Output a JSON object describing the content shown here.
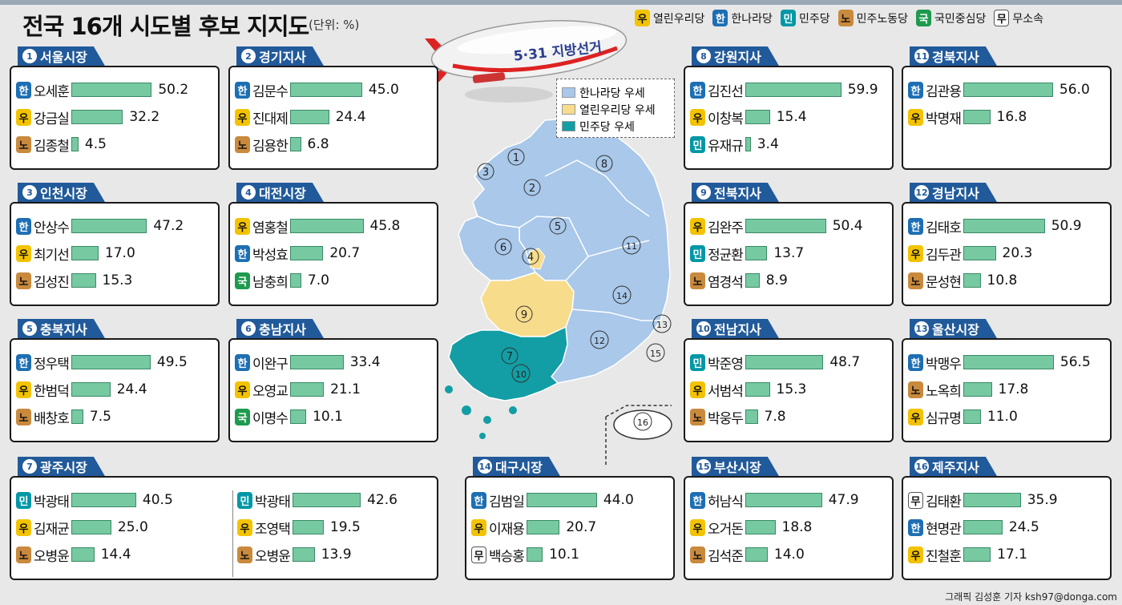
{
  "title": "전국 16개 시도별 후보 지지도",
  "unit": "(단위: %)",
  "credit": "그래픽 김성훈 기자 ksh97@donga.com",
  "blimp_text": "5·31 지방선거",
  "parties": {
    "u": {
      "abbr": "우",
      "name": "열린우리당",
      "color": "#f3c300"
    },
    "h": {
      "abbr": "한",
      "name": "한나라당",
      "color": "#1d6fb3"
    },
    "m": {
      "abbr": "민",
      "name": "민주당",
      "color": "#0097a7"
    },
    "n": {
      "abbr": "노",
      "name": "민주노동당",
      "color": "#c98a3d"
    },
    "g": {
      "abbr": "국",
      "name": "국민중심당",
      "color": "#1e9a4e"
    },
    "x": {
      "abbr": "무",
      "name": "무소속",
      "color": "#ffffff"
    }
  },
  "map_legend": [
    {
      "label": "한나라당 우세",
      "color": "#a9c8ea"
    },
    {
      "label": "열린우리당 우세",
      "color": "#f7dc8c"
    },
    {
      "label": "민주당 우세",
      "color": "#129ea4"
    }
  ],
  "map_numbers": [
    "1",
    "2",
    "3",
    "4",
    "5",
    "6",
    "7",
    "8",
    "9",
    "10",
    "11",
    "12",
    "13",
    "14",
    "15",
    "16"
  ],
  "chart_data": {
    "type": "bar",
    "orientation": "horizontal",
    "title": "전국 16개 시도별 후보 지지도",
    "unit": "%",
    "regions": [
      {
        "num": "1",
        "name": "서울시장",
        "candidates": [
          {
            "party": "h",
            "name": "오세훈",
            "value": 50.2
          },
          {
            "party": "u",
            "name": "강금실",
            "value": 32.2
          },
          {
            "party": "n",
            "name": "김종철",
            "value": 4.5
          }
        ]
      },
      {
        "num": "2",
        "name": "경기지사",
        "candidates": [
          {
            "party": "h",
            "name": "김문수",
            "value": 45.0
          },
          {
            "party": "u",
            "name": "진대제",
            "value": 24.4
          },
          {
            "party": "n",
            "name": "김용한",
            "value": 6.8
          }
        ]
      },
      {
        "num": "3",
        "name": "인천시장",
        "candidates": [
          {
            "party": "h",
            "name": "안상수",
            "value": 47.2
          },
          {
            "party": "u",
            "name": "최기선",
            "value": 17.0
          },
          {
            "party": "n",
            "name": "김성진",
            "value": 15.3
          }
        ]
      },
      {
        "num": "4",
        "name": "대전시장",
        "candidates": [
          {
            "party": "u",
            "name": "염홍철",
            "value": 45.8
          },
          {
            "party": "h",
            "name": "박성효",
            "value": 20.7
          },
          {
            "party": "g",
            "name": "남충희",
            "value": 7.0
          }
        ]
      },
      {
        "num": "5",
        "name": "충북지사",
        "candidates": [
          {
            "party": "h",
            "name": "정우택",
            "value": 49.5
          },
          {
            "party": "u",
            "name": "한범덕",
            "value": 24.4
          },
          {
            "party": "n",
            "name": "배창호",
            "value": 7.5
          }
        ]
      },
      {
        "num": "6",
        "name": "충남지사",
        "candidates": [
          {
            "party": "h",
            "name": "이완구",
            "value": 33.4
          },
          {
            "party": "u",
            "name": "오영교",
            "value": 21.1
          },
          {
            "party": "g",
            "name": "이명수",
            "value": 10.1
          }
        ]
      },
      {
        "num": "7",
        "name": "광주시장",
        "candidates": [
          {
            "party": "m",
            "name": "박광태",
            "value": 40.5
          },
          {
            "party": "u",
            "name": "김재균",
            "value": 25.0
          },
          {
            "party": "n",
            "name": "오병윤",
            "value": 14.4
          }
        ],
        "candidates_b": [
          {
            "party": "m",
            "name": "박광태",
            "value": 42.6
          },
          {
            "party": "u",
            "name": "조영택",
            "value": 19.5
          },
          {
            "party": "n",
            "name": "오병윤",
            "value": 13.9
          }
        ]
      },
      {
        "num": "8",
        "name": "강원지사",
        "candidates": [
          {
            "party": "h",
            "name": "김진선",
            "value": 59.9
          },
          {
            "party": "u",
            "name": "이창복",
            "value": 15.4
          },
          {
            "party": "m",
            "name": "유재규",
            "value": 3.4
          }
        ]
      },
      {
        "num": "9",
        "name": "전북지사",
        "candidates": [
          {
            "party": "u",
            "name": "김완주",
            "value": 50.4
          },
          {
            "party": "m",
            "name": "정균환",
            "value": 13.7
          },
          {
            "party": "n",
            "name": "염경석",
            "value": 8.9
          }
        ]
      },
      {
        "num": "10",
        "name": "전남지사",
        "candidates": [
          {
            "party": "m",
            "name": "박준영",
            "value": 48.7
          },
          {
            "party": "u",
            "name": "서범석",
            "value": 15.3
          },
          {
            "party": "n",
            "name": "박웅두",
            "value": 7.8
          }
        ]
      },
      {
        "num": "11",
        "name": "경북지사",
        "candidates": [
          {
            "party": "h",
            "name": "김관용",
            "value": 56.0
          },
          {
            "party": "u",
            "name": "박명재",
            "value": 16.8
          }
        ]
      },
      {
        "num": "12",
        "name": "경남지사",
        "candidates": [
          {
            "party": "h",
            "name": "김태호",
            "value": 50.9
          },
          {
            "party": "u",
            "name": "김두관",
            "value": 20.3
          },
          {
            "party": "n",
            "name": "문성현",
            "value": 10.8
          }
        ]
      },
      {
        "num": "13",
        "name": "울산시장",
        "candidates": [
          {
            "party": "h",
            "name": "박맹우",
            "value": 56.5
          },
          {
            "party": "n",
            "name": "노옥희",
            "value": 17.8
          },
          {
            "party": "u",
            "name": "심규명",
            "value": 11.0
          }
        ]
      },
      {
        "num": "14",
        "name": "대구시장",
        "candidates": [
          {
            "party": "h",
            "name": "김범일",
            "value": 44.0
          },
          {
            "party": "u",
            "name": "이재용",
            "value": 20.7
          },
          {
            "party": "x",
            "name": "백승홍",
            "value": 10.1
          }
        ]
      },
      {
        "num": "15",
        "name": "부산시장",
        "candidates": [
          {
            "party": "h",
            "name": "허남식",
            "value": 47.9
          },
          {
            "party": "u",
            "name": "오거돈",
            "value": 18.8
          },
          {
            "party": "n",
            "name": "김석준",
            "value": 14.0
          }
        ]
      },
      {
        "num": "16",
        "name": "제주지사",
        "candidates": [
          {
            "party": "x",
            "name": "김태환",
            "value": 35.9
          },
          {
            "party": "h",
            "name": "현명관",
            "value": 24.5
          },
          {
            "party": "u",
            "name": "진철훈",
            "value": 17.1
          }
        ]
      }
    ]
  }
}
